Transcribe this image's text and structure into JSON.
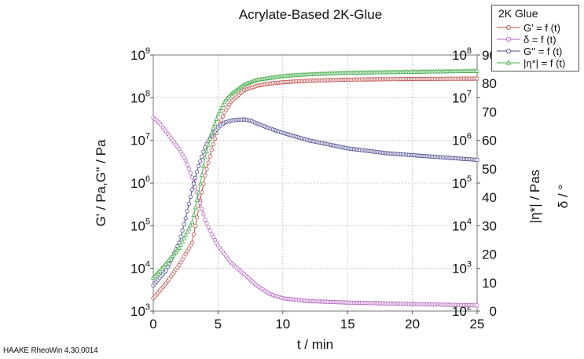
{
  "chart_data": {
    "type": "line",
    "title": "Acrylate-Based 2K-Glue",
    "xlabel": "t / min",
    "ylabel_left": "G' / Pa,G'' / Pa",
    "ylabel_right_eta": "|η*| / Pas",
    "ylabel_right_delta": "δ / °",
    "xlim": [
      0,
      25
    ],
    "x_ticks": [
      "0",
      "5",
      "10",
      "15",
      "20",
      "25"
    ],
    "ylim_left": [
      1000,
      1000000000
    ],
    "ylim_left_log": true,
    "y_left_ticks": [
      {
        "base": "10",
        "exp": "3",
        "value": 1000
      },
      {
        "base": "10",
        "exp": "4",
        "value": 10000
      },
      {
        "base": "10",
        "exp": "5",
        "value": 100000
      },
      {
        "base": "10",
        "exp": "6",
        "value": 1000000
      },
      {
        "base": "10",
        "exp": "7",
        "value": 10000000
      },
      {
        "base": "10",
        "exp": "8",
        "value": 100000000
      },
      {
        "base": "10",
        "exp": "9",
        "value": 1000000000
      }
    ],
    "ylim_eta": [
      100,
      100000000
    ],
    "ylim_eta_log": true,
    "y_eta_ticks": [
      {
        "base": "10",
        "exp": "2",
        "value": 100
      },
      {
        "base": "10",
        "exp": "3",
        "value": 1000
      },
      {
        "base": "10",
        "exp": "4",
        "value": 10000
      },
      {
        "base": "10",
        "exp": "5",
        "value": 100000
      },
      {
        "base": "10",
        "exp": "6",
        "value": 1000000
      },
      {
        "base": "10",
        "exp": "7",
        "value": 10000000
      },
      {
        "base": "10",
        "exp": "8",
        "value": 100000000
      }
    ],
    "ylim_delta": [
      0,
      90
    ],
    "y_delta_ticks": [
      "0",
      "10",
      "20",
      "30",
      "40",
      "50",
      "60",
      "70",
      "80",
      "90"
    ],
    "grid": true,
    "legend_title": "2K Glue",
    "legend_position": "top-right",
    "series": [
      {
        "name": "G' = f (t)",
        "axis": "left",
        "color": "#c0504d",
        "marker": "circle",
        "x": [
          0,
          1,
          2,
          3,
          4,
          4.5,
          5,
          5.5,
          6,
          7,
          8,
          9,
          10,
          12,
          15,
          20,
          25
        ],
        "y": [
          2000,
          4500,
          12000,
          40000,
          1500000,
          6000000,
          20000000,
          45000000,
          80000000,
          150000000,
          190000000,
          215000000,
          230000000,
          250000000,
          265000000,
          275000000,
          280000000
        ]
      },
      {
        "name": "δ = f (t)",
        "axis": "delta",
        "color": "#b565c0",
        "marker": "circle",
        "x": [
          0,
          0.5,
          1,
          1.5,
          2,
          2.5,
          3,
          3.5,
          4,
          4.5,
          5,
          6,
          7,
          8,
          9,
          10,
          12,
          15,
          20,
          25
        ],
        "y": [
          68,
          66,
          63,
          60,
          57,
          53,
          47,
          40,
          32,
          27,
          23,
          17,
          13,
          9,
          6,
          4.5,
          3.5,
          3,
          2.5,
          2
        ]
      },
      {
        "name": "G'' = f (t)",
        "axis": "left",
        "color": "#4d4d8f",
        "marker": "circle",
        "x": [
          0,
          1,
          2,
          2.5,
          3,
          3.5,
          4,
          4.5,
          5,
          5.5,
          6,
          6.5,
          7,
          7.5,
          8,
          9,
          10,
          12,
          15,
          18,
          20,
          25
        ],
        "y": [
          4000,
          9000,
          40000,
          150000,
          700000,
          2500000,
          7000000,
          13000000,
          20000000,
          26000000,
          29000000,
          30500000,
          31000000,
          29000000,
          25000000,
          19000000,
          15000000,
          10000000,
          6500000,
          5000000,
          4500000,
          3500000
        ]
      },
      {
        "name": "|η*| = f (t)",
        "axis": "eta",
        "color": "#4caf50",
        "marker": "triangle",
        "x": [
          0,
          1,
          2,
          3,
          3.5,
          4,
          4.5,
          5,
          5.5,
          6,
          7,
          8,
          10,
          12,
          15,
          20,
          25
        ],
        "y": [
          600,
          1300,
          3000,
          12000,
          60000,
          400000,
          1500000,
          4000000,
          8000000,
          12000000,
          20000000,
          26000000,
          32000000,
          35000000,
          38000000,
          40000000,
          42000000
        ]
      }
    ]
  },
  "footer_text": "HAAKE RheoWin 4.30.0014"
}
